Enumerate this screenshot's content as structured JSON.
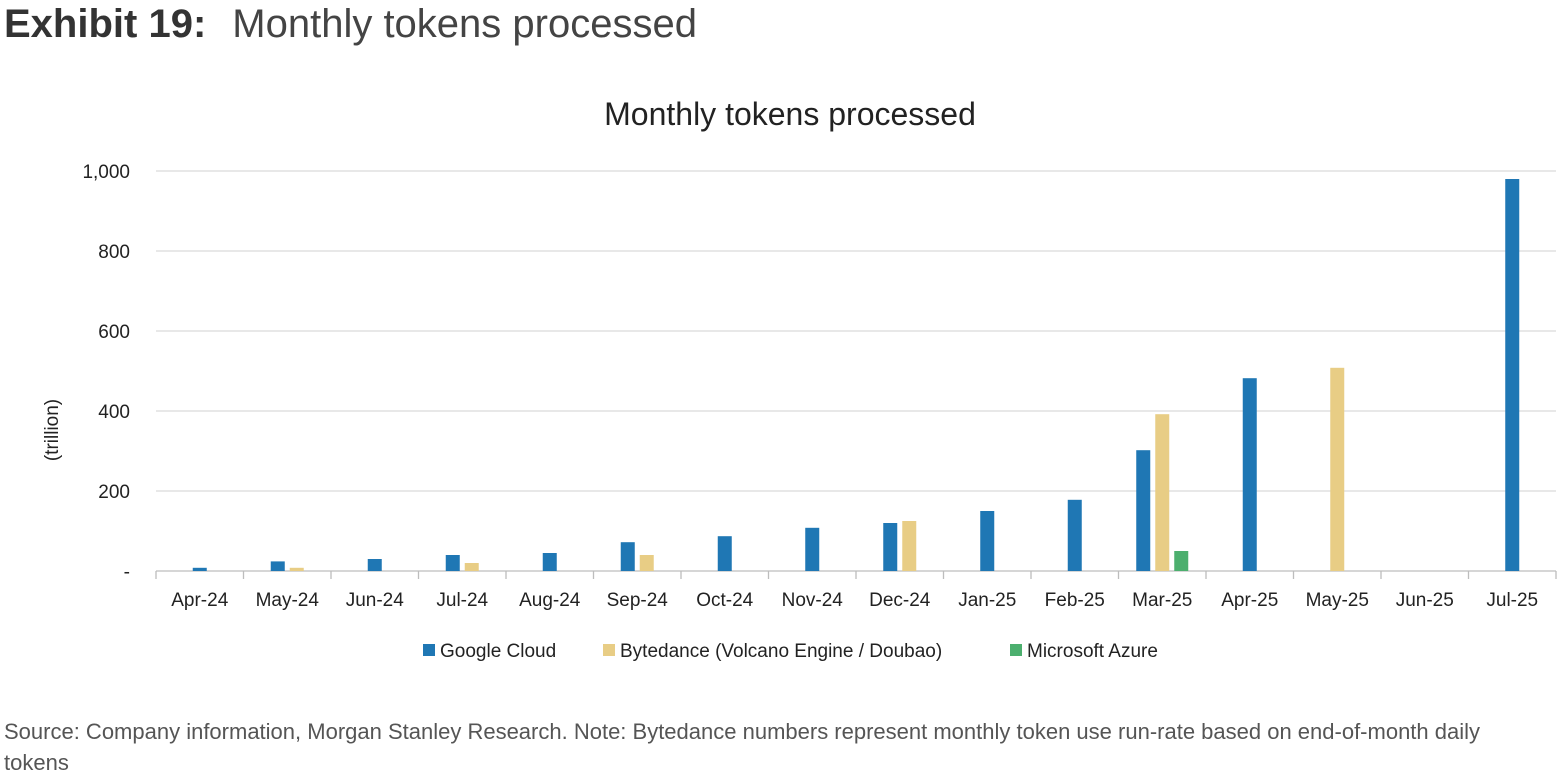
{
  "header": {
    "exhibit_label": "Exhibit 19:",
    "exhibit_title": "Monthly tokens processed"
  },
  "chart_data": {
    "type": "bar",
    "title": "Monthly tokens processed",
    "xlabel": "",
    "ylabel": "(trillion)",
    "ylim": [
      0,
      1000
    ],
    "yticks": [
      0,
      200,
      400,
      600,
      800,
      1000
    ],
    "ytick_labels": [
      "-",
      "200",
      "400",
      "600",
      "800",
      "1,000"
    ],
    "grid": true,
    "legend_position": "bottom",
    "categories": [
      "Apr-24",
      "May-24",
      "Jun-24",
      "Jul-24",
      "Aug-24",
      "Sep-24",
      "Oct-24",
      "Nov-24",
      "Dec-24",
      "Jan-25",
      "Feb-25",
      "Mar-25",
      "Apr-25",
      "May-25",
      "Jun-25",
      "Jul-25"
    ],
    "series": [
      {
        "name": "Google Cloud",
        "color": "#1f77b4",
        "values": [
          8,
          24,
          30,
          40,
          45,
          72,
          87,
          108,
          120,
          150,
          178,
          302,
          482,
          null,
          null,
          980
        ]
      },
      {
        "name": "Bytedance (Volcano Engine / Doubao)",
        "color": "#e8cd85",
        "values": [
          null,
          8,
          null,
          20,
          null,
          40,
          null,
          null,
          125,
          null,
          null,
          392,
          null,
          508,
          null,
          null
        ]
      },
      {
        "name": "Microsoft Azure",
        "color": "#4caf6e",
        "values": [
          null,
          null,
          null,
          null,
          null,
          null,
          null,
          null,
          null,
          null,
          null,
          50,
          null,
          null,
          null,
          null
        ]
      }
    ]
  },
  "footnote": "Source: Company information, Morgan Stanley Research. Note: Bytedance numbers represent monthly token use run-rate based on end-of-month daily tokens"
}
